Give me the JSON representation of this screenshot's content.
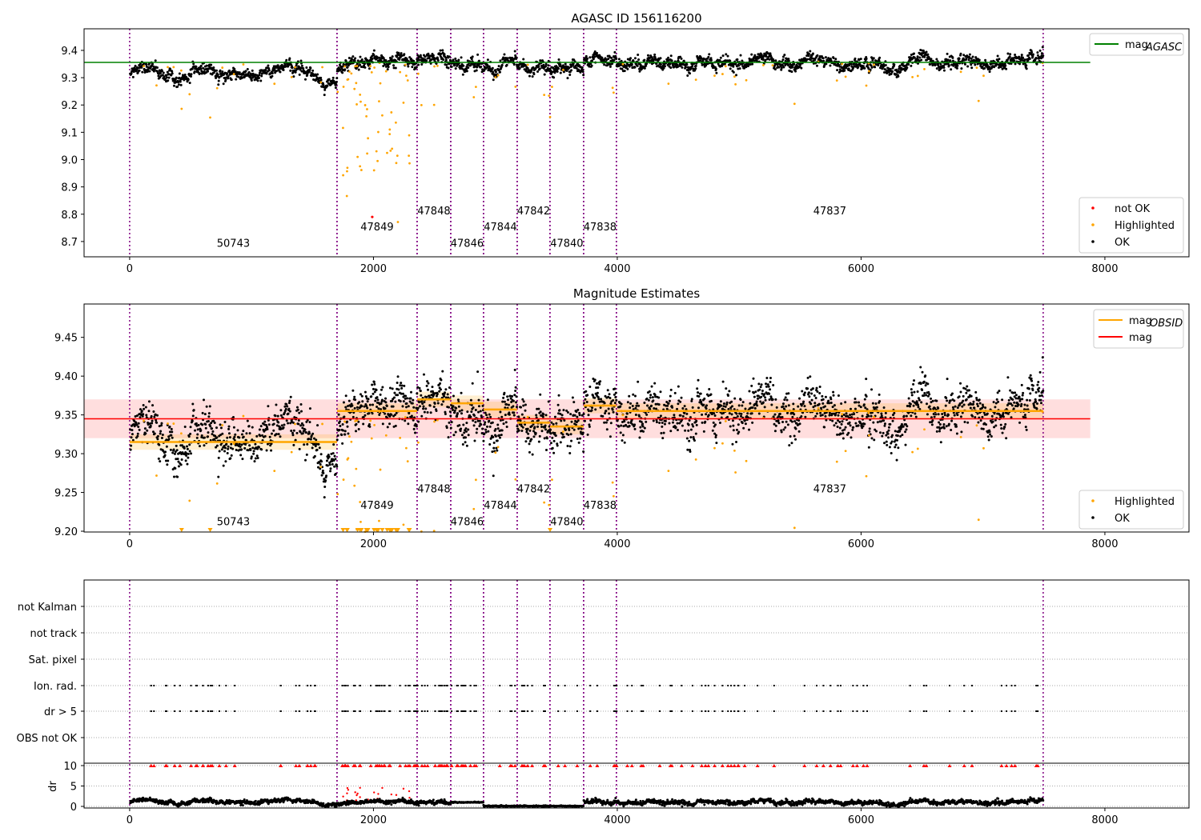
{
  "chart_data": [
    {
      "type": "scatter",
      "title": "AGASC ID 156116200",
      "xlim": [
        -374,
        8690
      ],
      "ylim": [
        8.644,
        9.479
      ],
      "xticks": [
        0,
        2000,
        4000,
        6000,
        8000
      ],
      "yticks": [
        8.7,
        8.8,
        8.9,
        9.0,
        9.1,
        9.2,
        9.3,
        9.4
      ],
      "ytick_decimals": 1,
      "mag_agasc": 9.356,
      "legend_top": [
        {
          "label": "mag",
          "sub": "AGASC",
          "color": "#008000"
        }
      ],
      "legend_bottom": [
        {
          "label": "not OK",
          "color": "#ff0000"
        },
        {
          "label": "Highlighted",
          "color": "#ffa500"
        },
        {
          "label": "OK",
          "color": "#000000"
        }
      ],
      "obsid_label_y": [
        8.68,
        8.74,
        8.8
      ]
    },
    {
      "type": "scatter",
      "title": "Magnitude Estimates",
      "xlim": [
        -374,
        8690
      ],
      "ylim": [
        9.199,
        9.493
      ],
      "xticks": [
        0,
        2000,
        4000,
        6000,
        8000
      ],
      "yticks": [
        9.2,
        9.25,
        9.3,
        9.35,
        9.4,
        9.45
      ],
      "ytick_decimals": 2,
      "mag": 9.345,
      "mag_band": [
        9.32,
        9.37
      ],
      "legend_top": [
        {
          "label": "mag",
          "sub": "OBSID",
          "color": "#ffa500"
        },
        {
          "label": "mag",
          "sub": "",
          "color": "#ff0000"
        }
      ],
      "legend_bottom": [
        {
          "label": "Highlighted",
          "color": "#ffa500"
        },
        {
          "label": "OK",
          "color": "#000000"
        }
      ],
      "obsid_label_y": [
        9.208,
        9.229,
        9.25
      ]
    },
    {
      "type": "scatter",
      "title": "",
      "xlim": [
        -374,
        8690
      ],
      "xticks": [
        0,
        2000,
        4000,
        6000,
        8000
      ],
      "flag_rows": [
        "not Kalman",
        "not track",
        "Sat. pixel",
        "Ion. rad.",
        "dr > 5",
        "OBS not OK"
      ],
      "dr_ylabel": "dr",
      "dr_yticks": [
        0,
        5,
        10
      ],
      "dr_ylim": [
        -0.4,
        10.6
      ]
    }
  ],
  "obsids": [
    {
      "id": "50743",
      "start": 0,
      "end": 1701,
      "mag": 9.315
    },
    {
      "id": "47849",
      "start": 1701,
      "end": 2358,
      "mag": 9.355
    },
    {
      "id": "47848",
      "start": 2358,
      "end": 2634,
      "mag": 9.37
    },
    {
      "id": "47846",
      "start": 2634,
      "end": 2903,
      "mag": 9.365
    },
    {
      "id": "47844",
      "start": 2903,
      "end": 3179,
      "mag": 9.357
    },
    {
      "id": "47842",
      "start": 3179,
      "end": 3448,
      "mag": 9.34
    },
    {
      "id": "47840",
      "start": 3448,
      "end": 3724,
      "mag": 9.335
    },
    {
      "id": "47838",
      "start": 3724,
      "end": 3993,
      "mag": 9.362
    },
    {
      "id": "47837",
      "start": 3993,
      "end": 7494,
      "mag": 9.355
    }
  ],
  "series_colors": {
    "ok": "#000000",
    "highlighted": "#ffa500",
    "not_ok": "#ff0000",
    "obsid_line": "#800080",
    "agasc": "#008000"
  }
}
